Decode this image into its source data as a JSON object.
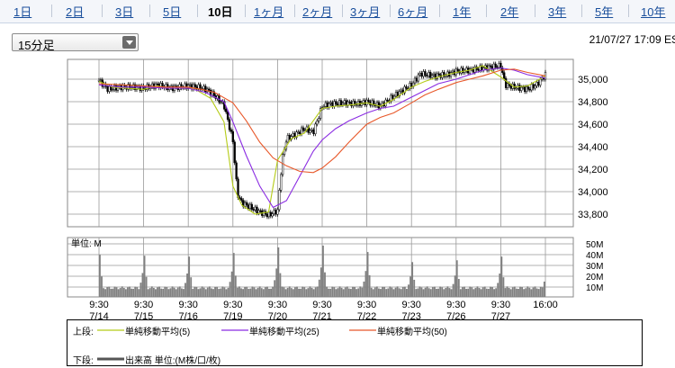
{
  "tabs": [
    "1日",
    "2日",
    "3日",
    "5日",
    "10日",
    "1ヶ月",
    "2ヶ月",
    "3ヶ月",
    "6ヶ月",
    "1年",
    "2年",
    "3年",
    "5年",
    "10年"
  ],
  "active_tab": "10日",
  "interval_select": {
    "selected": "15分足"
  },
  "timestamp": "21/07/27 17:09 ES",
  "colors": {
    "candle_up": "#ffffff",
    "candle_down": "#000000",
    "ma5": "#b5cc18",
    "ma25": "#8a2be2",
    "ma50": "#e8582a",
    "volume": "#808080",
    "grid": "#999999"
  },
  "chart_data": [
    {
      "type": "line",
      "title": "",
      "x_ticks": [
        [
          "9:30",
          "7/14"
        ],
        [
          "9:30",
          "7/15"
        ],
        [
          "9:30",
          "7/16"
        ],
        [
          "9:30",
          "7/19"
        ],
        [
          "9:30",
          "7/20"
        ],
        [
          "9:30",
          "7/21"
        ],
        [
          "9:30",
          "7/22"
        ],
        [
          "9:30",
          "7/23"
        ],
        [
          "9:30",
          "7/26"
        ],
        [
          "9:30",
          "7/27"
        ],
        [
          "16:00",
          ""
        ]
      ],
      "y_ticks": [
        "35,000",
        "34,800",
        "34,600",
        "34,400",
        "34,200",
        "34,000",
        "33,800"
      ],
      "ylim": [
        33700,
        35150
      ],
      "series": [
        {
          "name": "単純移動平均(5)",
          "x": [
            0,
            0.3,
            0.6,
            1,
            1.3,
            1.6,
            2,
            2.2,
            2.5,
            2.8,
            3,
            3.2,
            3.5,
            3.8,
            4,
            4.3,
            4.6,
            5,
            5.3,
            5.6,
            6,
            6.3,
            6.6,
            7,
            7.3,
            7.6,
            8,
            8.3,
            8.6,
            9,
            9.3,
            9.6,
            10
          ],
          "values": [
            34980,
            34930,
            34920,
            34910,
            34940,
            34920,
            34930,
            34900,
            34830,
            34620,
            34050,
            33880,
            33800,
            33820,
            34280,
            34470,
            34520,
            34740,
            34760,
            34770,
            34790,
            34760,
            34820,
            34930,
            34980,
            35020,
            35060,
            35080,
            35120,
            35020,
            34930,
            34940,
            35030
          ]
        },
        {
          "name": "単純移動平均(25)",
          "x": [
            0,
            0.5,
            1,
            1.5,
            2,
            2.4,
            2.8,
            3,
            3.3,
            3.6,
            3.9,
            4.2,
            4.5,
            4.8,
            5,
            5.3,
            5.6,
            6,
            6.3,
            6.6,
            7,
            7.3,
            7.6,
            8,
            8.3,
            8.6,
            9,
            9.3,
            9.6,
            10
          ],
          "values": [
            34950,
            34930,
            34930,
            34920,
            34920,
            34880,
            34800,
            34620,
            34320,
            34050,
            33860,
            33920,
            34140,
            34360,
            34460,
            34560,
            34630,
            34700,
            34740,
            34760,
            34840,
            34900,
            34960,
            35000,
            35040,
            35080,
            35100,
            35080,
            35040,
            35010
          ]
        },
        {
          "name": "単純移動平均(50)",
          "x": [
            0,
            0.5,
            1,
            1.5,
            2,
            2.3,
            2.6,
            3,
            3.3,
            3.6,
            3.9,
            4.2,
            4.5,
            4.8,
            5,
            5.3,
            5.6,
            6,
            6.3,
            6.6,
            7,
            7.3,
            7.6,
            8,
            8.3,
            8.6,
            9,
            9.3,
            9.6,
            10
          ],
          "values": [
            34960,
            34950,
            34940,
            34930,
            34930,
            34910,
            34880,
            34790,
            34630,
            34440,
            34300,
            34230,
            34180,
            34170,
            34210,
            34310,
            34440,
            34600,
            34660,
            34700,
            34790,
            34860,
            34910,
            34970,
            35000,
            35030,
            35080,
            35090,
            35060,
            35030
          ]
        },
        {
          "name": "price",
          "x": [
            0,
            0.2,
            0.5,
            0.8,
            1,
            1.3,
            1.6,
            2,
            2.2,
            2.4,
            2.6,
            2.8,
            3,
            3.1,
            3.2,
            3.4,
            3.6,
            3.8,
            4,
            4.1,
            4.2,
            4.4,
            4.6,
            4.8,
            5,
            5.2,
            5.5,
            5.8,
            6,
            6.3,
            6.6,
            7,
            7.2,
            7.5,
            7.8,
            8,
            8.3,
            8.6,
            9,
            9.1,
            9.3,
            9.6,
            9.8,
            10
          ],
          "values": [
            34990,
            34910,
            34930,
            34930,
            34920,
            34950,
            34920,
            34940,
            34930,
            34910,
            34850,
            34770,
            34450,
            33980,
            33900,
            33860,
            33820,
            33790,
            33830,
            34280,
            34470,
            34510,
            34560,
            34530,
            34760,
            34780,
            34790,
            34780,
            34800,
            34760,
            34850,
            34950,
            35050,
            35030,
            35040,
            35070,
            35080,
            35100,
            35120,
            34950,
            34930,
            34910,
            34950,
            35040
          ]
        }
      ]
    },
    {
      "type": "bar",
      "title": "",
      "ylabel": "単位: M",
      "y_ticks": [
        "50M",
        "40M",
        "30M",
        "20M",
        "10M"
      ],
      "ylim": [
        0,
        55
      ],
      "series": [
        {
          "name": "出来高 単位:(M株/口/枚)",
          "x": [
            0,
            1,
            2,
            3,
            4,
            5,
            6,
            7,
            8,
            9,
            10
          ],
          "values": [
            43,
            42,
            41,
            45,
            51,
            53,
            46,
            35,
            37,
            41,
            25
          ]
        }
      ]
    }
  ],
  "legend": {
    "upper_label": "上段:",
    "lower_label": "下段:",
    "items": [
      "単純移動平均(5)",
      "単純移動平均(25)",
      "単純移動平均(50)"
    ],
    "volume_item": "出来高 単位:(M株/口/枚)"
  }
}
